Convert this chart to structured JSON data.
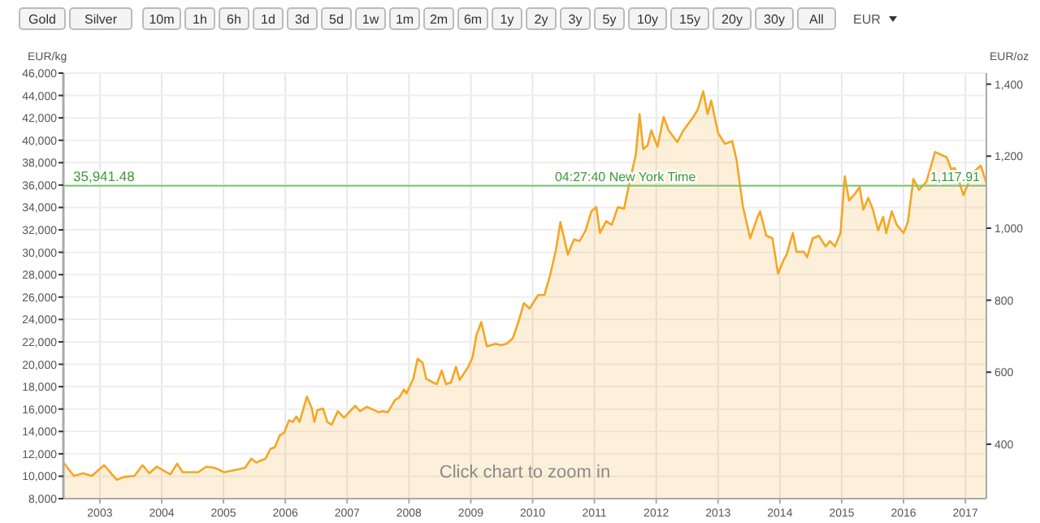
{
  "chart_data": {
    "type": "area",
    "ylabel": "EUR/kg",
    "y2label": "EUR/oz",
    "annotations": [
      {
        "text": "04:27:40 New York Time",
        "x": 2011.5,
        "y": 35941.48
      },
      {
        "text": "1,117.91",
        "x": 2017.3,
        "y": 35941.48
      },
      "Click chart to zoom in",
      "Gold",
      "Silver",
      "10m",
      "1h",
      "6h",
      "1d",
      "3d",
      "5d",
      "1w",
      "1m",
      "2m",
      "6m",
      "1y",
      "2y",
      "3y",
      "5y",
      "10y",
      "15y",
      "20y",
      "30y",
      "All",
      "EUR"
    ],
    "x": [
      2002.41,
      2002.58,
      2002.73,
      2002.87,
      2003.07,
      2003.27,
      2003.39,
      2003.56,
      2003.69,
      2003.8,
      2003.92,
      2004.14,
      2004.25,
      2004.34,
      2004.59,
      2004.72,
      2004.86,
      2005.01,
      2005.22,
      2005.35,
      2005.45,
      2005.53,
      2005.68,
      2005.76,
      2005.83,
      2005.91,
      2005.98,
      2006.06,
      2006.12,
      2006.18,
      2006.23,
      2006.35,
      2006.43,
      2006.47,
      2006.52,
      2006.61,
      2006.68,
      2006.75,
      2006.85,
      2006.95,
      2007.13,
      2007.21,
      2007.32,
      2007.51,
      2007.58,
      2007.66,
      2007.77,
      2007.84,
      2007.92,
      2007.96,
      2008.07,
      2008.14,
      2008.22,
      2008.28,
      2008.39,
      2008.45,
      2008.53,
      2008.6,
      2008.68,
      2008.76,
      2008.82,
      2008.95,
      2009.03,
      2009.09,
      2009.17,
      2009.26,
      2009.4,
      2009.49,
      2009.58,
      2009.68,
      2009.77,
      2009.86,
      2009.95,
      2010.09,
      2010.19,
      2010.28,
      2010.38,
      2010.45,
      2010.57,
      2010.67,
      2010.76,
      2010.86,
      2010.95,
      2011.03,
      2011.09,
      2011.19,
      2011.28,
      2011.38,
      2011.48,
      2011.57,
      2011.67,
      2011.73,
      2011.79,
      2011.86,
      2011.92,
      2012.02,
      2012.12,
      2012.2,
      2012.34,
      2012.44,
      2012.6,
      2012.67,
      2012.76,
      2012.83,
      2012.89,
      2013.0,
      2013.11,
      2013.23,
      2013.3,
      2013.4,
      2013.52,
      2013.64,
      2013.68,
      2013.78,
      2013.88,
      2013.97,
      2014.06,
      2014.11,
      2014.21,
      2014.27,
      2014.39,
      2014.44,
      2014.53,
      2014.63,
      2014.74,
      2014.81,
      2014.89,
      2014.98,
      2015.05,
      2015.12,
      2015.21,
      2015.29,
      2015.35,
      2015.43,
      2015.5,
      2015.59,
      2015.67,
      2015.72,
      2015.81,
      2015.89,
      2016.0,
      2016.07,
      2016.16,
      2016.25,
      2016.37,
      2016.51,
      2016.7,
      2016.77,
      2016.83,
      2016.97,
      2017.11,
      2017.25,
      2017.34
    ],
    "series": [
      {
        "color": "#f5a623",
        "values": [
          11230,
          10025,
          10265,
          10025,
          10990,
          9690,
          9930,
          10030,
          10990,
          10265,
          10850,
          10170,
          11130,
          10360,
          10360,
          10850,
          10750,
          10360,
          10600,
          10750,
          11570,
          11230,
          11570,
          12440,
          12580,
          13640,
          13880,
          14990,
          14850,
          15330,
          14850,
          17110,
          16050,
          14850,
          15910,
          16050,
          14850,
          14610,
          15810,
          15230,
          16290,
          15810,
          16200,
          15710,
          15810,
          15710,
          16780,
          17020,
          17740,
          17400,
          18700,
          20490,
          20150,
          18700,
          18370,
          18220,
          19430,
          18220,
          18370,
          19770,
          18610,
          19670,
          20630,
          22560,
          23770,
          21600,
          21840,
          21700,
          21840,
          22320,
          23770,
          25460,
          24970,
          26180,
          26180,
          27870,
          30280,
          32690,
          29800,
          31150,
          31000,
          31970,
          33650,
          34040,
          31720,
          32780,
          32450,
          34040,
          33890,
          36300,
          38720,
          42330,
          39200,
          39540,
          40890,
          39440,
          42090,
          40890,
          39830,
          40890,
          42090,
          42720,
          44360,
          42330,
          43540,
          40650,
          39680,
          39920,
          38230,
          34140,
          31240,
          33170,
          33650,
          31480,
          31240,
          28110,
          29310,
          29800,
          31720,
          30040,
          30040,
          29550,
          31240,
          31480,
          30520,
          31000,
          30520,
          31720,
          36790,
          34620,
          35200,
          35820,
          33800,
          34860,
          33890,
          31970,
          33170,
          31720,
          33650,
          32450,
          31720,
          32690,
          36550,
          35580,
          36300,
          38960,
          38480,
          37420,
          37510,
          35100,
          37030,
          37750,
          36160
        ]
      }
    ],
    "xlim": [
      2002.41,
      2017.34
    ],
    "xticks": [
      2003,
      2004,
      2005,
      2006,
      2007,
      2008,
      2009,
      2010,
      2011,
      2012,
      2013,
      2014,
      2015,
      2016,
      2017
    ],
    "ylim": [
      8000,
      46000
    ],
    "yticks": [
      {
        "value": 8000,
        "label": "8,000"
      },
      {
        "value": 10000,
        "label": "10,000"
      },
      {
        "value": 12000,
        "label": "12,000"
      },
      {
        "value": 14000,
        "label": "14,000"
      },
      {
        "value": 16000,
        "label": "16,000"
      },
      {
        "value": 18000,
        "label": "18,000"
      },
      {
        "value": 20000,
        "label": "20,000"
      },
      {
        "value": 22000,
        "label": "22,000"
      },
      {
        "value": 24000,
        "label": "24,000"
      },
      {
        "value": 26000,
        "label": "26,000"
      },
      {
        "value": 28000,
        "label": "28,000"
      },
      {
        "value": 30000,
        "label": "30,000"
      },
      {
        "value": 32000,
        "label": "32,000"
      },
      {
        "value": 34000,
        "label": "34,000"
      },
      {
        "value": 36000,
        "label": "36,000"
      },
      {
        "value": 38000,
        "label": "38,000"
      },
      {
        "value": 40000,
        "label": "40,000"
      },
      {
        "value": 42000,
        "label": "42,000"
      },
      {
        "value": 44000,
        "label": "44,000"
      },
      {
        "value": 46000,
        "label": "46,000"
      }
    ],
    "y2lim": [
      248.83,
      1430.76
    ],
    "y2ticks": [
      400,
      600,
      800,
      {
        "value": 1000,
        "label": "1,000"
      },
      {
        "value": 1200,
        "label": "1,200"
      },
      {
        "value": 1400,
        "label": "1,400"
      }
    ],
    "ref_lines": [
      {
        "axis": "y",
        "value": 35941.48,
        "label": "35,941.48",
        "color": "#7cc576"
      }
    ],
    "grid": true
  }
}
